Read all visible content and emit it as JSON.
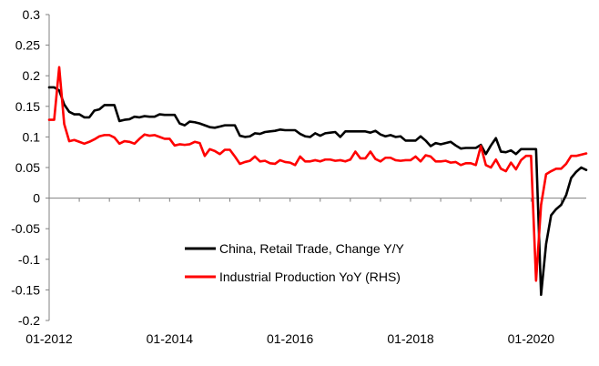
{
  "chart_data": {
    "type": "line",
    "title": "",
    "xlabel": "",
    "ylabel": "",
    "ylim": [
      -0.2,
      0.3
    ],
    "y_ticks": [
      "0.3",
      "0.25",
      "0.2",
      "0.15",
      "0.1",
      "0.05",
      "0",
      "-0.05",
      "-0.1",
      "-0.15",
      "-0.2"
    ],
    "x_ticks": [
      "01-2012",
      "01-2014",
      "01-2016",
      "01-2018",
      "01-2020"
    ],
    "x_range": [
      "2012-01",
      "2020-12"
    ],
    "grid": false,
    "legend_position": "bottom-center",
    "x_dates": [
      "2012-01",
      "2012-02",
      "2012-03",
      "2012-04",
      "2012-05",
      "2012-06",
      "2012-07",
      "2012-08",
      "2012-09",
      "2012-10",
      "2012-11",
      "2012-12",
      "2013-01",
      "2013-02",
      "2013-03",
      "2013-04",
      "2013-05",
      "2013-06",
      "2013-07",
      "2013-08",
      "2013-09",
      "2013-10",
      "2013-11",
      "2013-12",
      "2014-01",
      "2014-02",
      "2014-03",
      "2014-04",
      "2014-05",
      "2014-06",
      "2014-07",
      "2014-08",
      "2014-09",
      "2014-10",
      "2014-11",
      "2014-12",
      "2015-01",
      "2015-02",
      "2015-03",
      "2015-04",
      "2015-05",
      "2015-06",
      "2015-07",
      "2015-08",
      "2015-09",
      "2015-10",
      "2015-11",
      "2015-12",
      "2016-01",
      "2016-02",
      "2016-03",
      "2016-04",
      "2016-05",
      "2016-06",
      "2016-07",
      "2016-08",
      "2016-09",
      "2016-10",
      "2016-11",
      "2016-12",
      "2017-01",
      "2017-02",
      "2017-03",
      "2017-04",
      "2017-05",
      "2017-06",
      "2017-07",
      "2017-08",
      "2017-09",
      "2017-10",
      "2017-11",
      "2017-12",
      "2018-01",
      "2018-02",
      "2018-03",
      "2018-04",
      "2018-05",
      "2018-06",
      "2018-07",
      "2018-08",
      "2018-09",
      "2018-10",
      "2018-11",
      "2018-12",
      "2019-01",
      "2019-02",
      "2019-03",
      "2019-04",
      "2019-05",
      "2019-06",
      "2019-07",
      "2019-08",
      "2019-09",
      "2019-10",
      "2019-11",
      "2019-12",
      "2020-01",
      "2020-02",
      "2020-03",
      "2020-04",
      "2020-05",
      "2020-06",
      "2020-07",
      "2020-08",
      "2020-09",
      "2020-10",
      "2020-11",
      "2020-12"
    ],
    "series": [
      {
        "name": "China, Retail Trade, Change Y/Y",
        "color": "#000000",
        "values": [
          0.181,
          0.181,
          0.176,
          0.153,
          0.141,
          0.137,
          0.137,
          0.132,
          0.132,
          0.143,
          0.145,
          0.152,
          0.152,
          0.152,
          0.126,
          0.128,
          0.129,
          0.133,
          0.132,
          0.134,
          0.133,
          0.133,
          0.137,
          0.136,
          0.136,
          0.136,
          0.122,
          0.119,
          0.125,
          0.124,
          0.122,
          0.119,
          0.116,
          0.115,
          0.117,
          0.119,
          0.119,
          0.119,
          0.102,
          0.1,
          0.101,
          0.106,
          0.105,
          0.108,
          0.109,
          0.11,
          0.112,
          0.111,
          0.111,
          0.111,
          0.105,
          0.101,
          0.1,
          0.106,
          0.102,
          0.106,
          0.107,
          0.108,
          0.1,
          0.109,
          0.109,
          0.109,
          0.109,
          0.109,
          0.107,
          0.11,
          0.104,
          0.101,
          0.103,
          0.1,
          0.101,
          0.094,
          0.094,
          0.094,
          0.101,
          0.094,
          0.085,
          0.09,
          0.088,
          0.09,
          0.092,
          0.086,
          0.081,
          0.082,
          0.082,
          0.082,
          0.087,
          0.072,
          0.086,
          0.098,
          0.076,
          0.075,
          0.078,
          0.072,
          0.08,
          0.08,
          0.08,
          0.08,
          -0.158,
          -0.075,
          -0.028,
          -0.018,
          -0.011,
          0.005,
          0.033,
          0.043,
          0.05,
          0.046
        ]
      },
      {
        "name": "Industrial Production YoY (RHS)",
        "color": "#ff0000",
        "values": [
          0.128,
          0.128,
          0.214,
          0.121,
          0.093,
          0.095,
          0.092,
          0.089,
          0.092,
          0.096,
          0.101,
          0.103,
          0.103,
          0.099,
          0.089,
          0.093,
          0.092,
          0.089,
          0.097,
          0.104,
          0.102,
          0.103,
          0.1,
          0.097,
          0.097,
          0.086,
          0.088,
          0.087,
          0.088,
          0.092,
          0.09,
          0.069,
          0.08,
          0.077,
          0.072,
          0.079,
          0.079,
          0.068,
          0.056,
          0.059,
          0.061,
          0.068,
          0.06,
          0.061,
          0.057,
          0.056,
          0.062,
          0.059,
          0.058,
          0.054,
          0.068,
          0.06,
          0.06,
          0.062,
          0.06,
          0.063,
          0.063,
          0.061,
          0.062,
          0.06,
          0.063,
          0.076,
          0.065,
          0.065,
          0.076,
          0.064,
          0.06,
          0.066,
          0.066,
          0.062,
          0.061,
          0.062,
          0.062,
          0.068,
          0.06,
          0.07,
          0.068,
          0.06,
          0.06,
          0.061,
          0.058,
          0.059,
          0.054,
          0.057,
          0.057,
          0.054,
          0.085,
          0.054,
          0.05,
          0.063,
          0.048,
          0.044,
          0.058,
          0.047,
          0.062,
          0.069,
          0.069,
          -0.135,
          -0.011,
          0.039,
          0.044,
          0.048,
          0.048,
          0.056,
          0.069,
          0.069,
          0.071,
          0.073
        ]
      }
    ]
  }
}
